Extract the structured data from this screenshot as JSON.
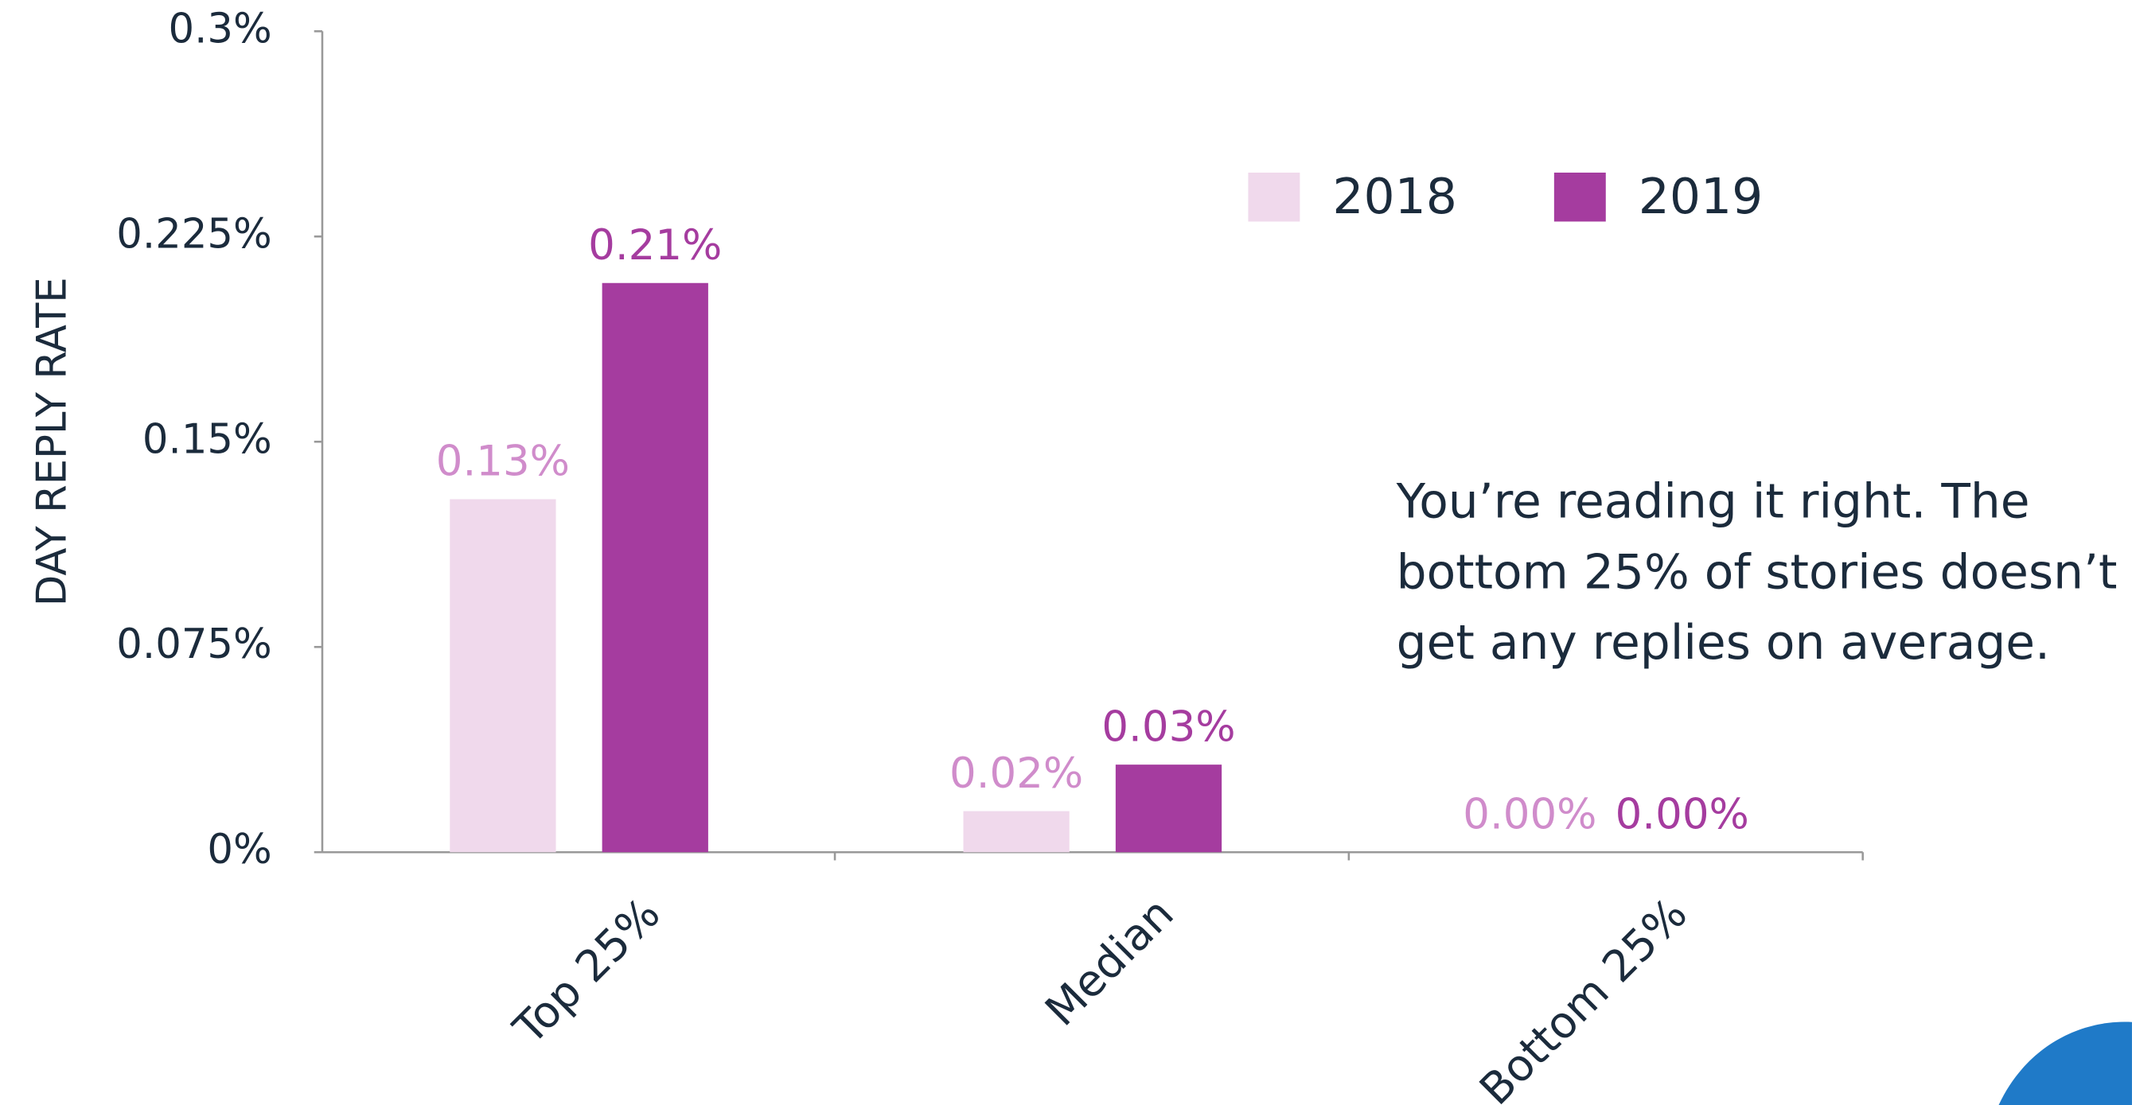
{
  "chart_data": {
    "type": "bar",
    "y_label": "DAY REPLY RATE",
    "categories": [
      "Top 25%",
      "Median",
      "Bottom 25%"
    ],
    "series": [
      {
        "name": "2018",
        "color": "#f0d9ec",
        "label_color": "#d08ccb",
        "values": [
          0.129,
          0.015,
          0
        ],
        "value_labels": [
          "0.13%",
          "0.02%",
          "0.00%"
        ]
      },
      {
        "name": "2019",
        "color": "#a53c9f",
        "label_color": "#a53c9f",
        "values": [
          0.208,
          0.032,
          0
        ],
        "value_labels": [
          "0.21%",
          "0.03%",
          "0.00%"
        ]
      }
    ],
    "ylim": [
      0,
      0.3
    ],
    "yticks": [
      {
        "value": 0,
        "label": "0%"
      },
      {
        "value": 0.075,
        "label": "0.075%"
      },
      {
        "value": 0.15,
        "label": "0.15%"
      },
      {
        "value": 0.225,
        "label": "0.225%"
      },
      {
        "value": 0.3,
        "label": "0.3%"
      }
    ],
    "legend": "top-right",
    "annotation": [
      "You’re reading it right. The",
      "bottom 25% of stories doesn’t",
      "get any replies on average."
    ]
  }
}
